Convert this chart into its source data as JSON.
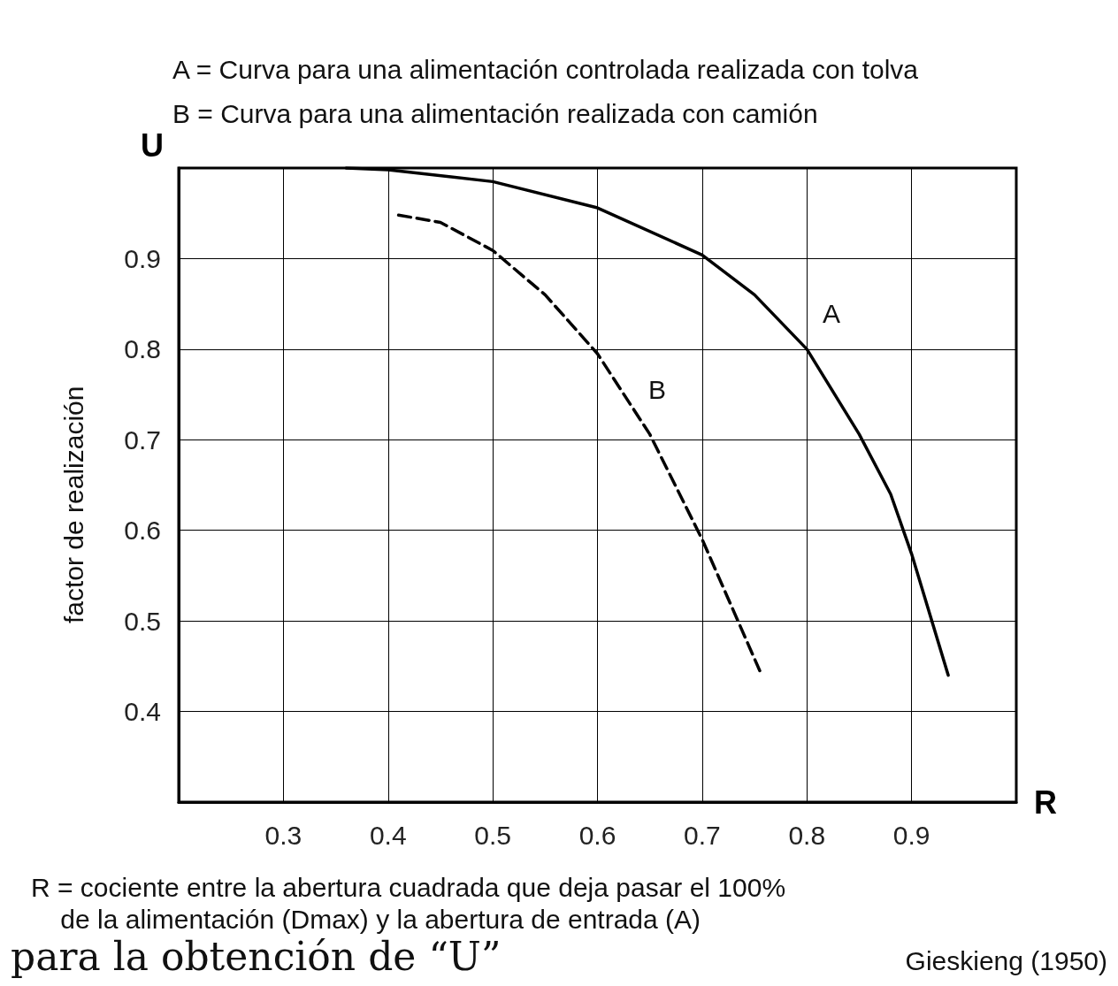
{
  "chart_data": {
    "type": "line",
    "xlabel": "R",
    "ylabel": "U",
    "xlim": [
      0.2,
      1.0
    ],
    "ylim": [
      0.3,
      1.0
    ],
    "xticks": [
      {
        "value": 0.2,
        "label": null
      },
      0.3,
      0.4,
      0.5,
      0.6,
      0.7,
      0.8,
      0.9,
      {
        "value": 1.0,
        "label": null
      }
    ],
    "yticks": [
      {
        "value": 0.3,
        "label": null
      },
      0.4,
      0.5,
      0.6,
      0.7,
      0.8,
      0.9,
      {
        "value": 1.0,
        "label": null
      }
    ],
    "series": [
      {
        "color": "#000000",
        "line_style": "solid",
        "x": [
          0.36,
          0.4,
          0.5,
          0.6,
          0.7,
          0.75,
          0.8,
          0.85,
          0.88,
          0.9,
          0.935
        ],
        "values": [
          1.0,
          0.998,
          0.985,
          0.956,
          0.904,
          0.86,
          0.8,
          0.706,
          0.64,
          0.574,
          0.44
        ]
      },
      {
        "color": "#000000",
        "line_style": "dashed",
        "x": [
          0.41,
          0.45,
          0.5,
          0.55,
          0.6,
          0.65,
          0.7,
          0.755
        ],
        "values": [
          0.948,
          0.94,
          0.909,
          0.86,
          0.795,
          0.706,
          0.59,
          0.445
        ]
      }
    ],
    "marker": "none",
    "grid": true,
    "annotations": [
      "A = Curva para una alimentación controlada realizada con tolva",
      "B = Curva para una alimentación realizada con camión",
      "factor de realización",
      "R = cociente entre la abertura cuadrada que deja pasar el 100%\n    de la alimentación (Dmax) y la abertura de entrada (A)",
      "Gieskieng (1950)",
      "para la obtención de “U”",
      "A",
      "B"
    ]
  }
}
